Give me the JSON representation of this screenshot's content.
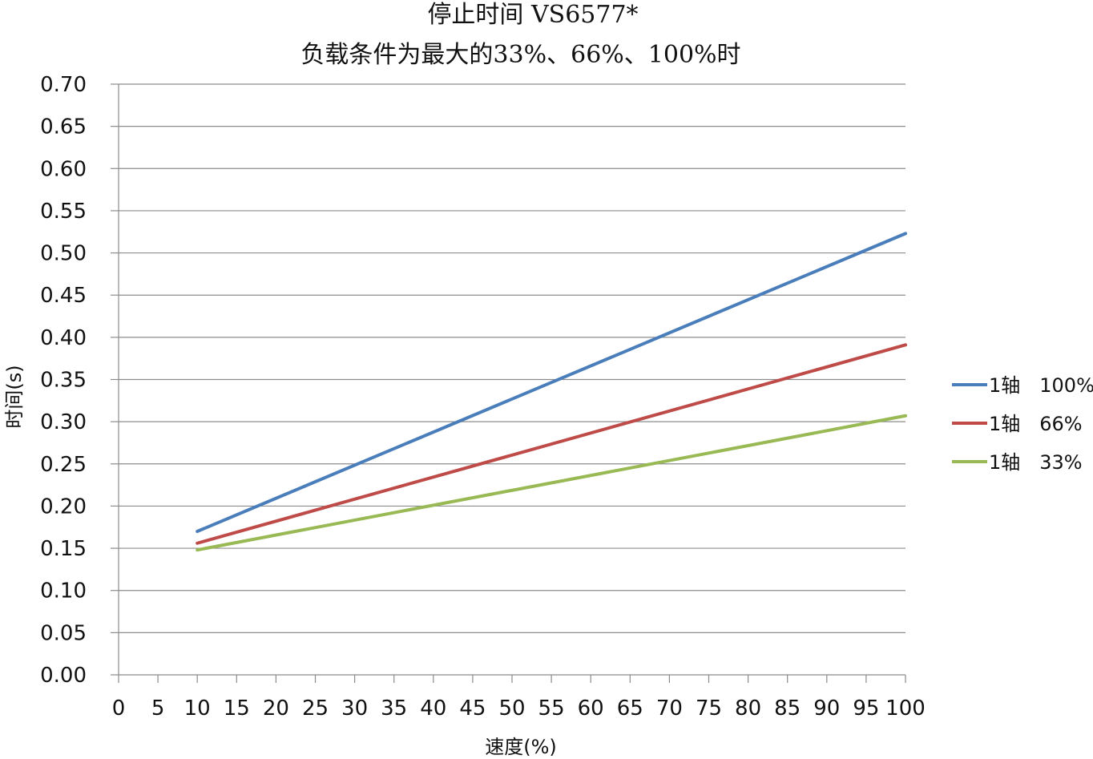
{
  "chart_data": {
    "type": "line",
    "title": "停止时间 VS6577*",
    "subtitle": "负载条件为最大的33%、66%、100%时",
    "xlabel": "速度(%)",
    "ylabel": "时间(s)",
    "xlim": [
      0,
      100
    ],
    "ylim": [
      0,
      0.7
    ],
    "x_ticks": [
      "0",
      "5",
      "10",
      "15",
      "20",
      "25",
      "30",
      "35",
      "40",
      "45",
      "50",
      "55",
      "60",
      "65",
      "70",
      "75",
      "80",
      "85",
      "90",
      "95",
      "100"
    ],
    "y_ticks": [
      "0.00",
      "0.05",
      "0.10",
      "0.15",
      "0.20",
      "0.25",
      "0.30",
      "0.35",
      "0.40",
      "0.45",
      "0.50",
      "0.55",
      "0.60",
      "0.65",
      "0.70"
    ],
    "grid": true,
    "legend_position": "right",
    "series": [
      {
        "name": "1轴　100%",
        "color": "#4a7ebb",
        "x": [
          10,
          100
        ],
        "y": [
          0.17,
          0.523
        ]
      },
      {
        "name": "1轴　66%",
        "color": "#be4b48",
        "x": [
          10,
          100
        ],
        "y": [
          0.156,
          0.391
        ]
      },
      {
        "name": "1轴　33%",
        "color": "#98b954",
        "x": [
          10,
          100
        ],
        "y": [
          0.148,
          0.307
        ]
      }
    ]
  }
}
